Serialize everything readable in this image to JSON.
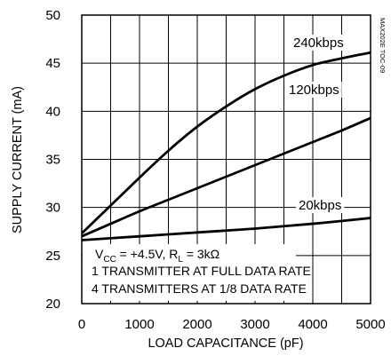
{
  "chart_data": {
    "type": "line",
    "xlabel": "LOAD CAPACITANCE (pF)",
    "ylabel": "SUPPLY CURRENT (mA)",
    "xlim": [
      0,
      5000
    ],
    "ylim": [
      20,
      50
    ],
    "x_ticks": [
      "0",
      "1000",
      "2000",
      "3000",
      "4000",
      "5000"
    ],
    "y_ticks": [
      "20",
      "25",
      "30",
      "35",
      "40",
      "45",
      "50"
    ],
    "grid": true,
    "series": [
      {
        "name": "240kbps",
        "x": [
          0,
          500,
          1000,
          1500,
          2000,
          2500,
          3000,
          3500,
          4000,
          4500,
          5000
        ],
        "y": [
          27.3,
          30.2,
          33.1,
          35.9,
          38.4,
          40.5,
          42.3,
          43.7,
          44.8,
          45.5,
          46.1
        ]
      },
      {
        "name": "120kbps",
        "x": [
          0,
          500,
          1000,
          1500,
          2000,
          2500,
          3000,
          3500,
          4000,
          4500,
          5000
        ],
        "y": [
          27.0,
          28.3,
          29.6,
          30.8,
          32.0,
          33.2,
          34.4,
          35.6,
          36.8,
          38.0,
          39.3
        ]
      },
      {
        "name": "20kbps",
        "x": [
          0,
          1000,
          2000,
          3000,
          4000,
          5000
        ],
        "y": [
          26.6,
          27.0,
          27.4,
          27.8,
          28.3,
          28.9
        ]
      }
    ],
    "annotations": {
      "line1_pre": "V",
      "line1_sub1": "CC",
      "line1_mid": " = +4.5V, R",
      "line1_sub2": "L",
      "line1_post": " = 3kΩ",
      "line2": "1 TRANSMITTER AT FULL DATA RATE",
      "line3": "4 TRANSMITTERS AT 1/8 DATA RATE",
      "figure_code": "MAX202E TOC-09"
    }
  }
}
